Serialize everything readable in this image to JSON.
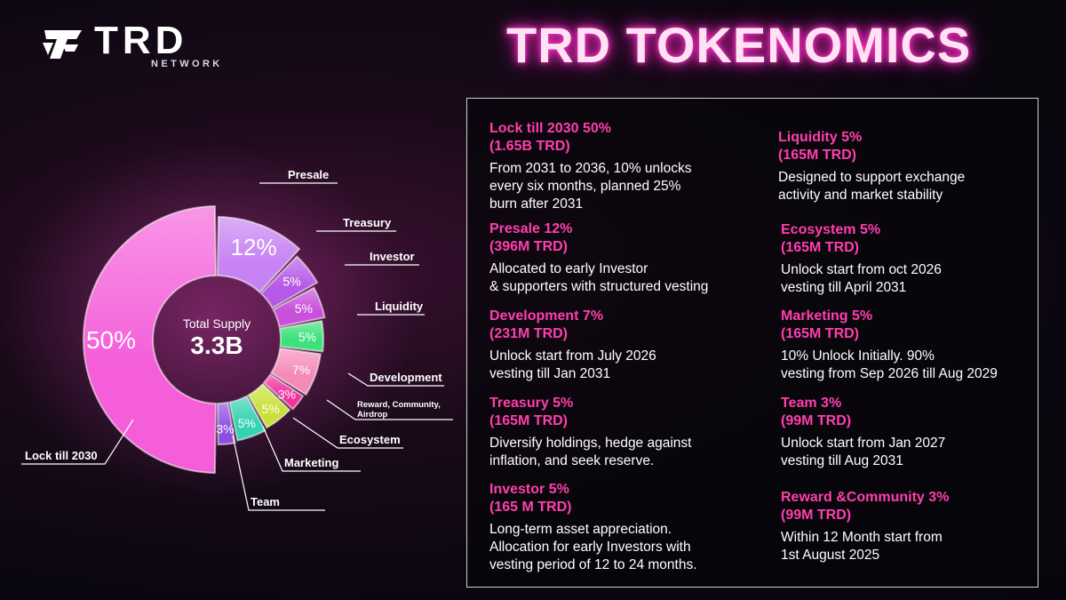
{
  "brand": {
    "name": "TRD",
    "sub": "NETWORK"
  },
  "title": "TRD TOKENOMICS",
  "chart_data": {
    "type": "pie",
    "center_label": "Total Supply",
    "center_value": "3.3B",
    "slices": [
      {
        "name": "Lock till 2030",
        "value": 50,
        "label": "50%",
        "color": "#f45ed9"
      },
      {
        "name": "Presale",
        "value": 12,
        "label": "12%",
        "color": "#c783f3"
      },
      {
        "name": "Treasury",
        "value": 5,
        "label": "5%",
        "color": "#b659e6"
      },
      {
        "name": "Investor",
        "value": 5,
        "label": "5%",
        "color": "#c950db"
      },
      {
        "name": "Liquidity",
        "value": 5,
        "label": "5%",
        "color": "#3ee07c"
      },
      {
        "name": "Development",
        "value": 7,
        "label": "7%",
        "color": "#f48ab8"
      },
      {
        "name": "Reward, Community, Airdrop",
        "value": 3,
        "label": "3%",
        "color": "#f1329f"
      },
      {
        "name": "Ecosystem",
        "value": 5,
        "label": "5%",
        "color": "#c8e13a"
      },
      {
        "name": "Marketing",
        "value": 5,
        "label": "5%",
        "color": "#35d3b3"
      },
      {
        "name": "Team",
        "value": 3,
        "label": "3%",
        "color": "#8e4fe0"
      }
    ]
  },
  "details": [
    {
      "head1": "Lock till 2030 50%",
      "head2": "(1.65B TRD)",
      "desc": "From 2031 to 2036, 10% unlocks\nevery six months, planned 25%\nburn after 2031"
    },
    {
      "head1": "Presale 12%",
      "head2": "(396M TRD)",
      "desc": "Allocated to early Investor\n& supporters with structured vesting"
    },
    {
      "head1": "Development 7%",
      "head2": "(231M TRD)",
      "desc": "Unlock start from July 2026\nvesting till Jan 2031"
    },
    {
      "head1": "Treasury 5%",
      "head2": "(165M TRD)",
      "desc": "Diversify holdings, hedge against\ninflation, and seek reserve."
    },
    {
      "head1": "Investor 5%",
      "head2": "(165 M TRD)",
      "desc": "Long-term asset appreciation.\nAllocation for early Investors with\nvesting period of 12 to 24 months."
    },
    {
      "head1": "Liquidity 5%",
      "head2": "(165M TRD)",
      "desc": "Designed to support exchange\nactivity and market stability"
    },
    {
      "head1": "Ecosystem 5%",
      "head2": "(165M TRD)",
      "desc": "Unlock start from oct 2026\nvesting till April 2031"
    },
    {
      "head1": "Marketing 5%",
      "head2": "(165M TRD)",
      "desc": "10% Unlock Initially. 90%\nvesting from Sep 2026 till Aug 2029"
    },
    {
      "head1": "Team 3%",
      "head2": "(99M TRD)",
      "desc": "Unlock start from Jan 2027\nvesting till Aug 2031"
    },
    {
      "head1": "Reward &Community 3%",
      "head2": "(99M TRD)",
      "desc": "Within 12 Month start from\n1st August 2025"
    }
  ]
}
